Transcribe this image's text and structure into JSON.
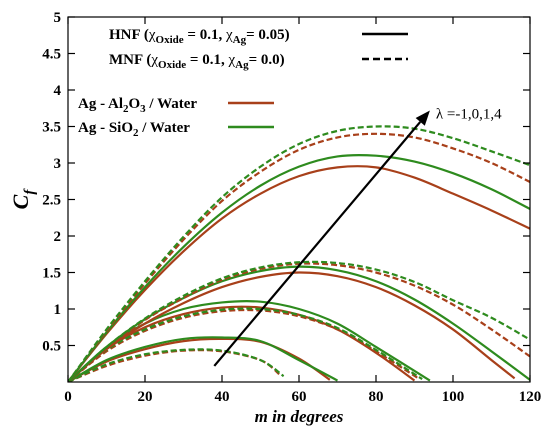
{
  "chart_data": {
    "type": "line",
    "xlabel": "m in degrees",
    "ylabel": "C",
    "ylabel_subscript": "f",
    "xlim": [
      0,
      120
    ],
    "ylim": [
      0,
      5
    ],
    "xticks": [
      0,
      20,
      40,
      60,
      80,
      100,
      120
    ],
    "yticks": [
      0.5,
      1,
      1.5,
      2,
      2.5,
      3,
      3.5,
      4,
      4.5,
      5
    ],
    "grid": false,
    "legend_styles": {
      "position": "top",
      "entries": [
        {
          "main": "HNF (",
          "chi1": "χ",
          "sub1": "Oxide",
          "mid": " = 0.1, ",
          "chi2": "χ",
          "sub2": "Ag",
          "end": "= 0.05)",
          "style": "solid"
        },
        {
          "main": "MNF (",
          "chi1": "χ",
          "sub1": "Oxide",
          "mid": " = 0.1, ",
          "chi2": "χ",
          "sub2": "Ag",
          "end": "= 0.0)",
          "style": "dashed"
        }
      ]
    },
    "legend_colors": {
      "position": "left",
      "entries": [
        {
          "pre": "Ag - Al",
          "sub": "2",
          "post": "O",
          "sub2": "3",
          "end": " / Water",
          "color": "#A8401A"
        },
        {
          "pre": "Ag - SiO",
          "sub": "2",
          "post": "",
          "sub2": "",
          "end": " / Water",
          "color": "#2E8B1E"
        }
      ]
    },
    "annotation": {
      "text": "λ =-1,0,1,4",
      "arrow_from": [
        38,
        0.22
      ],
      "arrow_to": [
        94,
        3.72
      ]
    },
    "series": [
      {
        "group": "λ=-1",
        "color": "#A8401A",
        "style": "solid",
        "x": [
          0,
          10,
          20,
          30,
          40,
          50,
          60,
          68
        ],
        "y": [
          0,
          0.28,
          0.45,
          0.56,
          0.59,
          0.55,
          0.32,
          0.03
        ]
      },
      {
        "group": "λ=-1",
        "color": "#2E8B1E",
        "style": "solid",
        "x": [
          0,
          10,
          20,
          30,
          40,
          50,
          60,
          70
        ],
        "y": [
          0,
          0.3,
          0.48,
          0.59,
          0.61,
          0.56,
          0.3,
          0.02
        ]
      },
      {
        "group": "λ=-1",
        "color": "#A8401A",
        "style": "dashed",
        "x": [
          0,
          10,
          20,
          30,
          40,
          50,
          55
        ],
        "y": [
          0,
          0.22,
          0.36,
          0.43,
          0.42,
          0.3,
          0.1
        ]
      },
      {
        "group": "λ=-1",
        "color": "#2E8B1E",
        "style": "dashed",
        "x": [
          0,
          10,
          20,
          30,
          40,
          50,
          56
        ],
        "y": [
          0,
          0.24,
          0.38,
          0.44,
          0.43,
          0.3,
          0.08
        ]
      },
      {
        "group": "λ=0",
        "color": "#A8401A",
        "style": "solid",
        "x": [
          0,
          10,
          20,
          30,
          40,
          50,
          60,
          70,
          80,
          90
        ],
        "y": [
          0,
          0.45,
          0.75,
          0.93,
          1.02,
          1.02,
          0.92,
          0.72,
          0.4,
          0.02
        ]
      },
      {
        "group": "λ=0",
        "color": "#2E8B1E",
        "style": "solid",
        "x": [
          0,
          10,
          20,
          30,
          40,
          50,
          60,
          70,
          80,
          94
        ],
        "y": [
          0,
          0.48,
          0.8,
          1.0,
          1.09,
          1.1,
          1.0,
          0.8,
          0.48,
          0.02
        ]
      },
      {
        "group": "λ=0",
        "color": "#A8401A",
        "style": "dashed",
        "x": [
          0,
          10,
          20,
          30,
          40,
          50,
          60,
          70,
          80,
          91
        ],
        "y": [
          0,
          0.42,
          0.7,
          0.88,
          0.97,
          0.98,
          0.9,
          0.72,
          0.42,
          0.05
        ]
      },
      {
        "group": "λ=0",
        "color": "#2E8B1E",
        "style": "dashed",
        "x": [
          0,
          10,
          20,
          30,
          40,
          50,
          60,
          70,
          80,
          92
        ],
        "y": [
          0,
          0.44,
          0.72,
          0.9,
          0.99,
          1.0,
          0.92,
          0.74,
          0.44,
          0.04
        ]
      },
      {
        "group": "λ=1",
        "color": "#A8401A",
        "style": "solid",
        "x": [
          0,
          10,
          20,
          30,
          40,
          50,
          60,
          70,
          80,
          90,
          100,
          110,
          116
        ],
        "y": [
          0,
          0.45,
          0.8,
          1.08,
          1.3,
          1.44,
          1.5,
          1.45,
          1.3,
          1.05,
          0.72,
          0.3,
          0.05
        ]
      },
      {
        "group": "λ=1",
        "color": "#2E8B1E",
        "style": "solid",
        "x": [
          0,
          10,
          20,
          30,
          40,
          50,
          60,
          70,
          80,
          90,
          100,
          110,
          120
        ],
        "y": [
          0,
          0.48,
          0.86,
          1.15,
          1.38,
          1.52,
          1.58,
          1.53,
          1.38,
          1.13,
          0.8,
          0.42,
          0.03
        ]
      },
      {
        "group": "λ=1",
        "color": "#A8401A",
        "style": "dashed",
        "x": [
          0,
          10,
          20,
          30,
          40,
          50,
          60,
          70,
          80,
          90,
          100,
          110,
          120
        ],
        "y": [
          0,
          0.46,
          0.85,
          1.15,
          1.4,
          1.55,
          1.62,
          1.6,
          1.5,
          1.32,
          1.06,
          0.72,
          0.35
        ]
      },
      {
        "group": "λ=1",
        "color": "#2E8B1E",
        "style": "dashed",
        "x": [
          0,
          10,
          20,
          30,
          40,
          50,
          60,
          70,
          80,
          90,
          100,
          110,
          120
        ],
        "y": [
          0,
          0.48,
          0.87,
          1.18,
          1.42,
          1.57,
          1.64,
          1.63,
          1.54,
          1.37,
          1.12,
          0.88,
          0.58
        ]
      },
      {
        "group": "λ=4",
        "color": "#A8401A",
        "style": "solid",
        "x": [
          0,
          10,
          20,
          30,
          40,
          50,
          60,
          70,
          80,
          90,
          100,
          110,
          120
        ],
        "y": [
          0,
          0.66,
          1.26,
          1.79,
          2.24,
          2.58,
          2.82,
          2.94,
          2.94,
          2.8,
          2.58,
          2.35,
          2.1
        ]
      },
      {
        "group": "λ=4",
        "color": "#2E8B1E",
        "style": "solid",
        "x": [
          0,
          10,
          20,
          30,
          40,
          50,
          60,
          70,
          80,
          90,
          100,
          110,
          120
        ],
        "y": [
          0,
          0.68,
          1.3,
          1.85,
          2.32,
          2.69,
          2.95,
          3.09,
          3.1,
          3.02,
          2.86,
          2.64,
          2.37
        ]
      },
      {
        "group": "λ=4",
        "color": "#A8401A",
        "style": "dashed",
        "x": [
          0,
          10,
          20,
          30,
          40,
          50,
          60,
          70,
          80,
          90,
          100,
          110,
          120
        ],
        "y": [
          0,
          0.7,
          1.35,
          1.95,
          2.48,
          2.88,
          3.18,
          3.35,
          3.4,
          3.35,
          3.2,
          3.0,
          2.74
        ]
      },
      {
        "group": "λ=4",
        "color": "#2E8B1E",
        "style": "dashed",
        "x": [
          0,
          10,
          20,
          30,
          40,
          50,
          60,
          70,
          80,
          90,
          100,
          110,
          120
        ],
        "y": [
          0,
          0.72,
          1.38,
          1.99,
          2.53,
          2.95,
          3.26,
          3.44,
          3.5,
          3.47,
          3.34,
          3.16,
          2.97
        ]
      }
    ]
  }
}
